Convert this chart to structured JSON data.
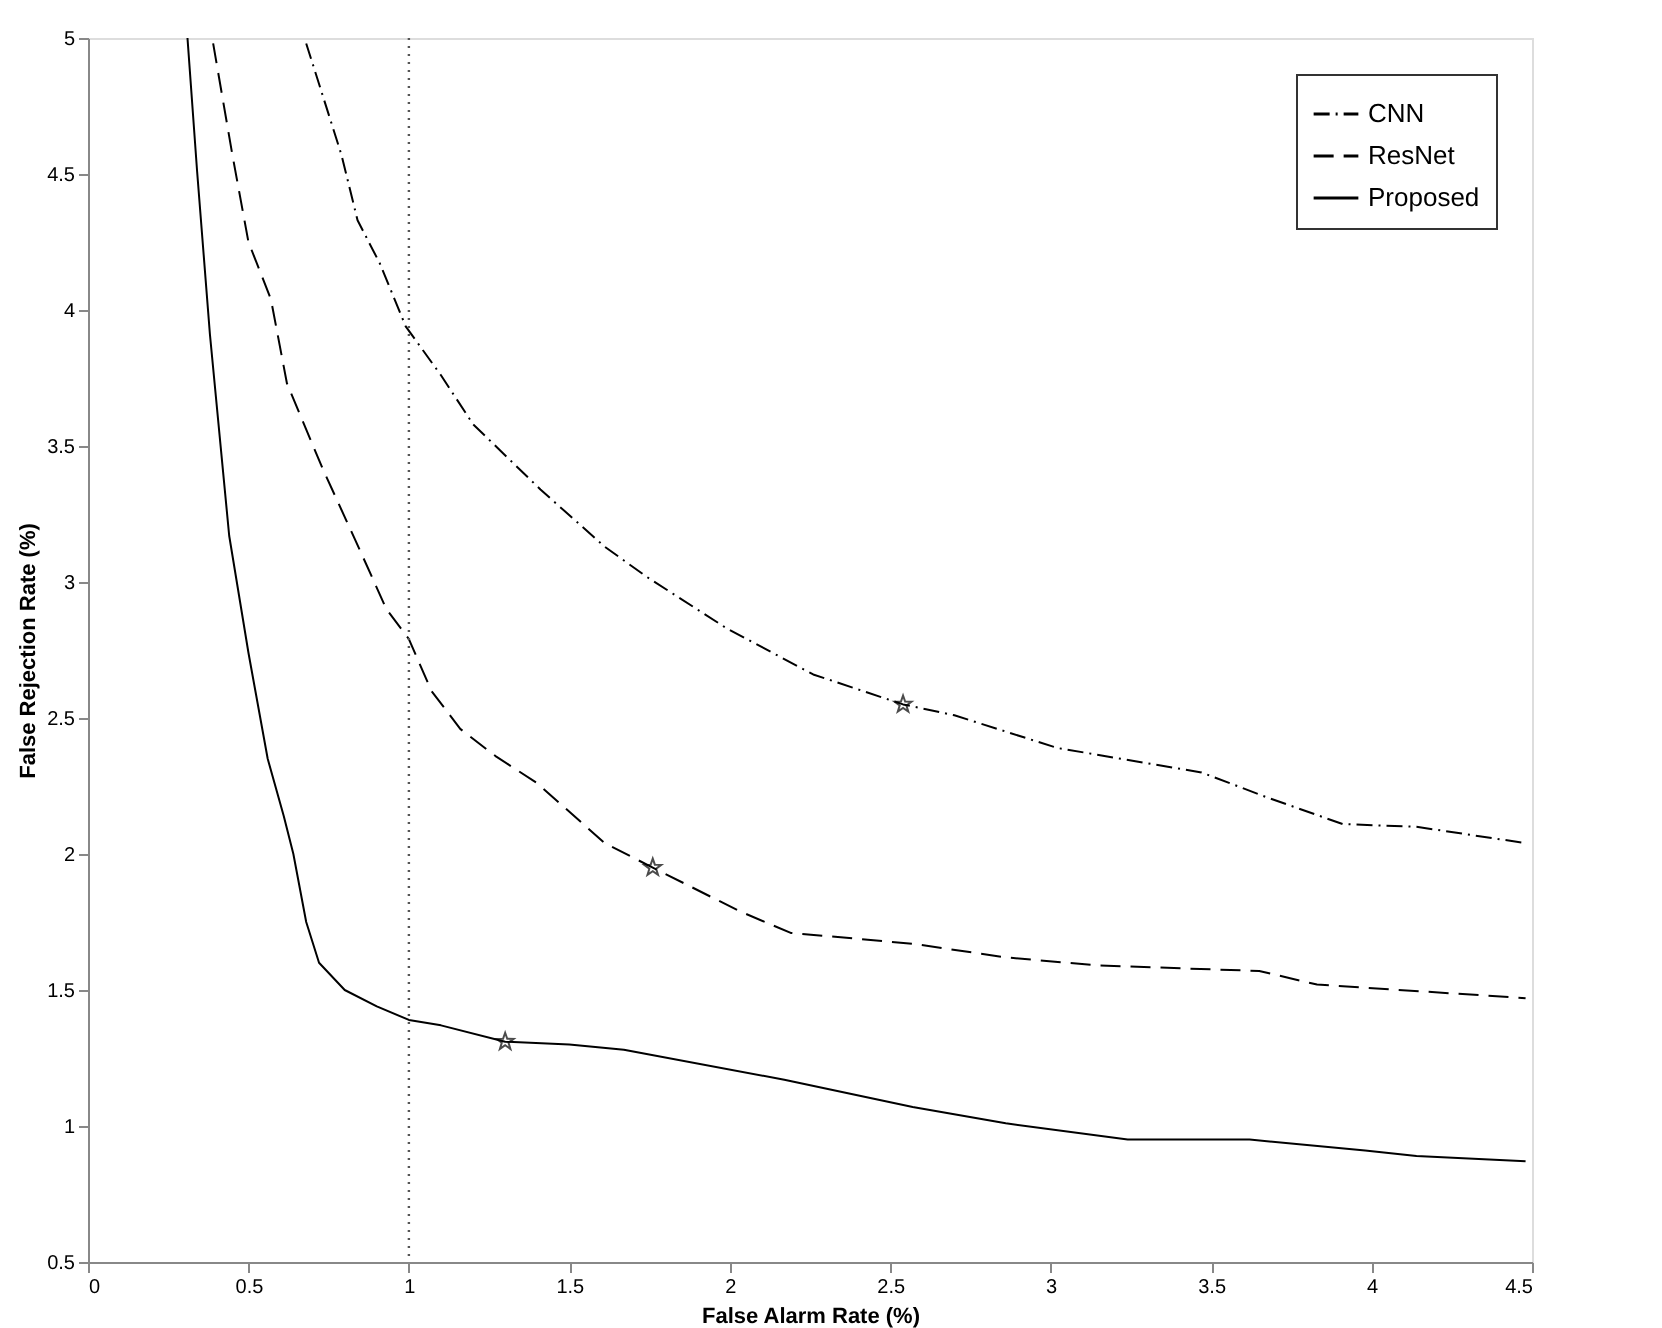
{
  "chart_data": {
    "type": "line",
    "xlabel": "False Alarm Rate (%)",
    "ylabel": "False Rejection Rate (%)",
    "xlim": [
      0,
      4.5
    ],
    "xticks": [
      0,
      0.5,
      1,
      1.5,
      2,
      2.5,
      3,
      3.5,
      4,
      4.5
    ],
    "ylim": [
      0.5,
      5
    ],
    "yticks": [
      0.5,
      1,
      1.5,
      2,
      2.5,
      3,
      3.5,
      4,
      4.5,
      5
    ],
    "grid": false,
    "legend": "top right",
    "ref_lines": [
      {
        "axis": "x",
        "value": 1,
        "line_style": "dotted",
        "color": "#555555"
      }
    ],
    "series": [
      {
        "name": "CNN",
        "color": "#000000",
        "line_style": "dashdot",
        "x": [
          0.68,
          0.79,
          0.84,
          0.91,
          0.99,
          1.1,
          1.2,
          1.41,
          1.61,
          1.74,
          1.99,
          2.26,
          2.54,
          2.7,
          3.02,
          3.47,
          3.67,
          3.91,
          4.14,
          4.48
        ],
        "values": [
          4.98,
          4.57,
          4.33,
          4.17,
          3.94,
          3.76,
          3.58,
          3.34,
          3.13,
          3.02,
          2.83,
          2.66,
          2.55,
          2.51,
          2.39,
          2.3,
          2.21,
          2.11,
          2.1,
          2.04
        ]
      },
      {
        "name": "ResNet",
        "color": "#000000",
        "line_style": "dashed",
        "x": [
          0.39,
          0.45,
          0.5,
          0.57,
          0.62,
          0.73,
          0.85,
          0.93,
          1.0,
          1.07,
          1.16,
          1.27,
          1.4,
          1.61,
          1.76,
          2.03,
          2.19,
          2.57,
          2.86,
          3.15,
          3.65,
          3.83,
          4.48
        ],
        "values": [
          4.98,
          4.57,
          4.25,
          4.04,
          3.73,
          3.42,
          3.11,
          2.9,
          2.79,
          2.6,
          2.46,
          2.36,
          2.26,
          2.04,
          1.95,
          1.79,
          1.71,
          1.67,
          1.62,
          1.59,
          1.57,
          1.52,
          1.47
        ]
      },
      {
        "name": "Proposed",
        "color": "#000000",
        "line_style": "solid",
        "x": [
          0.31,
          0.34,
          0.38,
          0.44,
          0.5,
          0.56,
          0.61,
          0.64,
          0.68,
          0.72,
          0.8,
          0.9,
          1.0,
          1.1,
          1.3,
          1.5,
          1.67,
          2.17,
          2.57,
          2.86,
          3.24,
          3.62,
          3.98,
          4.14,
          4.48
        ],
        "values": [
          5.0,
          4.51,
          3.91,
          3.17,
          2.74,
          2.35,
          2.14,
          2.0,
          1.75,
          1.6,
          1.5,
          1.44,
          1.39,
          1.37,
          1.31,
          1.3,
          1.28,
          1.17,
          1.07,
          1.01,
          0.95,
          0.95,
          0.91,
          0.89,
          0.87
        ]
      },
      {
        "type": "scatter",
        "color": "#000000",
        "marker": "star",
        "x": [
          2.54,
          1.76,
          1.3
        ],
        "values": [
          2.55,
          1.95,
          1.31
        ]
      }
    ]
  }
}
